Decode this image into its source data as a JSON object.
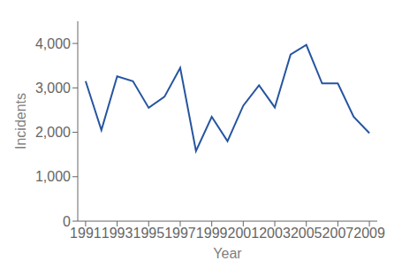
{
  "chart_data": {
    "type": "line",
    "x": [
      1991,
      1992,
      1993,
      1994,
      1995,
      1996,
      1997,
      1998,
      1999,
      2000,
      2001,
      2002,
      2003,
      2004,
      2005,
      2006,
      2007,
      2008,
      2009
    ],
    "values": [
      3150,
      2050,
      3260,
      3150,
      2550,
      2800,
      3450,
      1580,
      2350,
      1800,
      2600,
      3060,
      2560,
      3750,
      3967,
      3100,
      3100,
      2350,
      1980
    ],
    "color": "#2655a0",
    "xlabel": "Year",
    "ylabel": "Incidents",
    "xlim": [
      1990.5,
      2009.5
    ],
    "ylim": [
      0,
      4500
    ],
    "xticks": [
      1991,
      1993,
      1995,
      1997,
      1999,
      2001,
      2003,
      2005,
      2007,
      2009
    ],
    "yticks": [
      0,
      {
        "value": 1000,
        "label": "1,000"
      },
      {
        "value": 2000,
        "label": "2,000"
      },
      {
        "value": 3000,
        "label": "3,000"
      },
      {
        "value": 4000,
        "label": "4,000"
      }
    ],
    "grid": false
  }
}
